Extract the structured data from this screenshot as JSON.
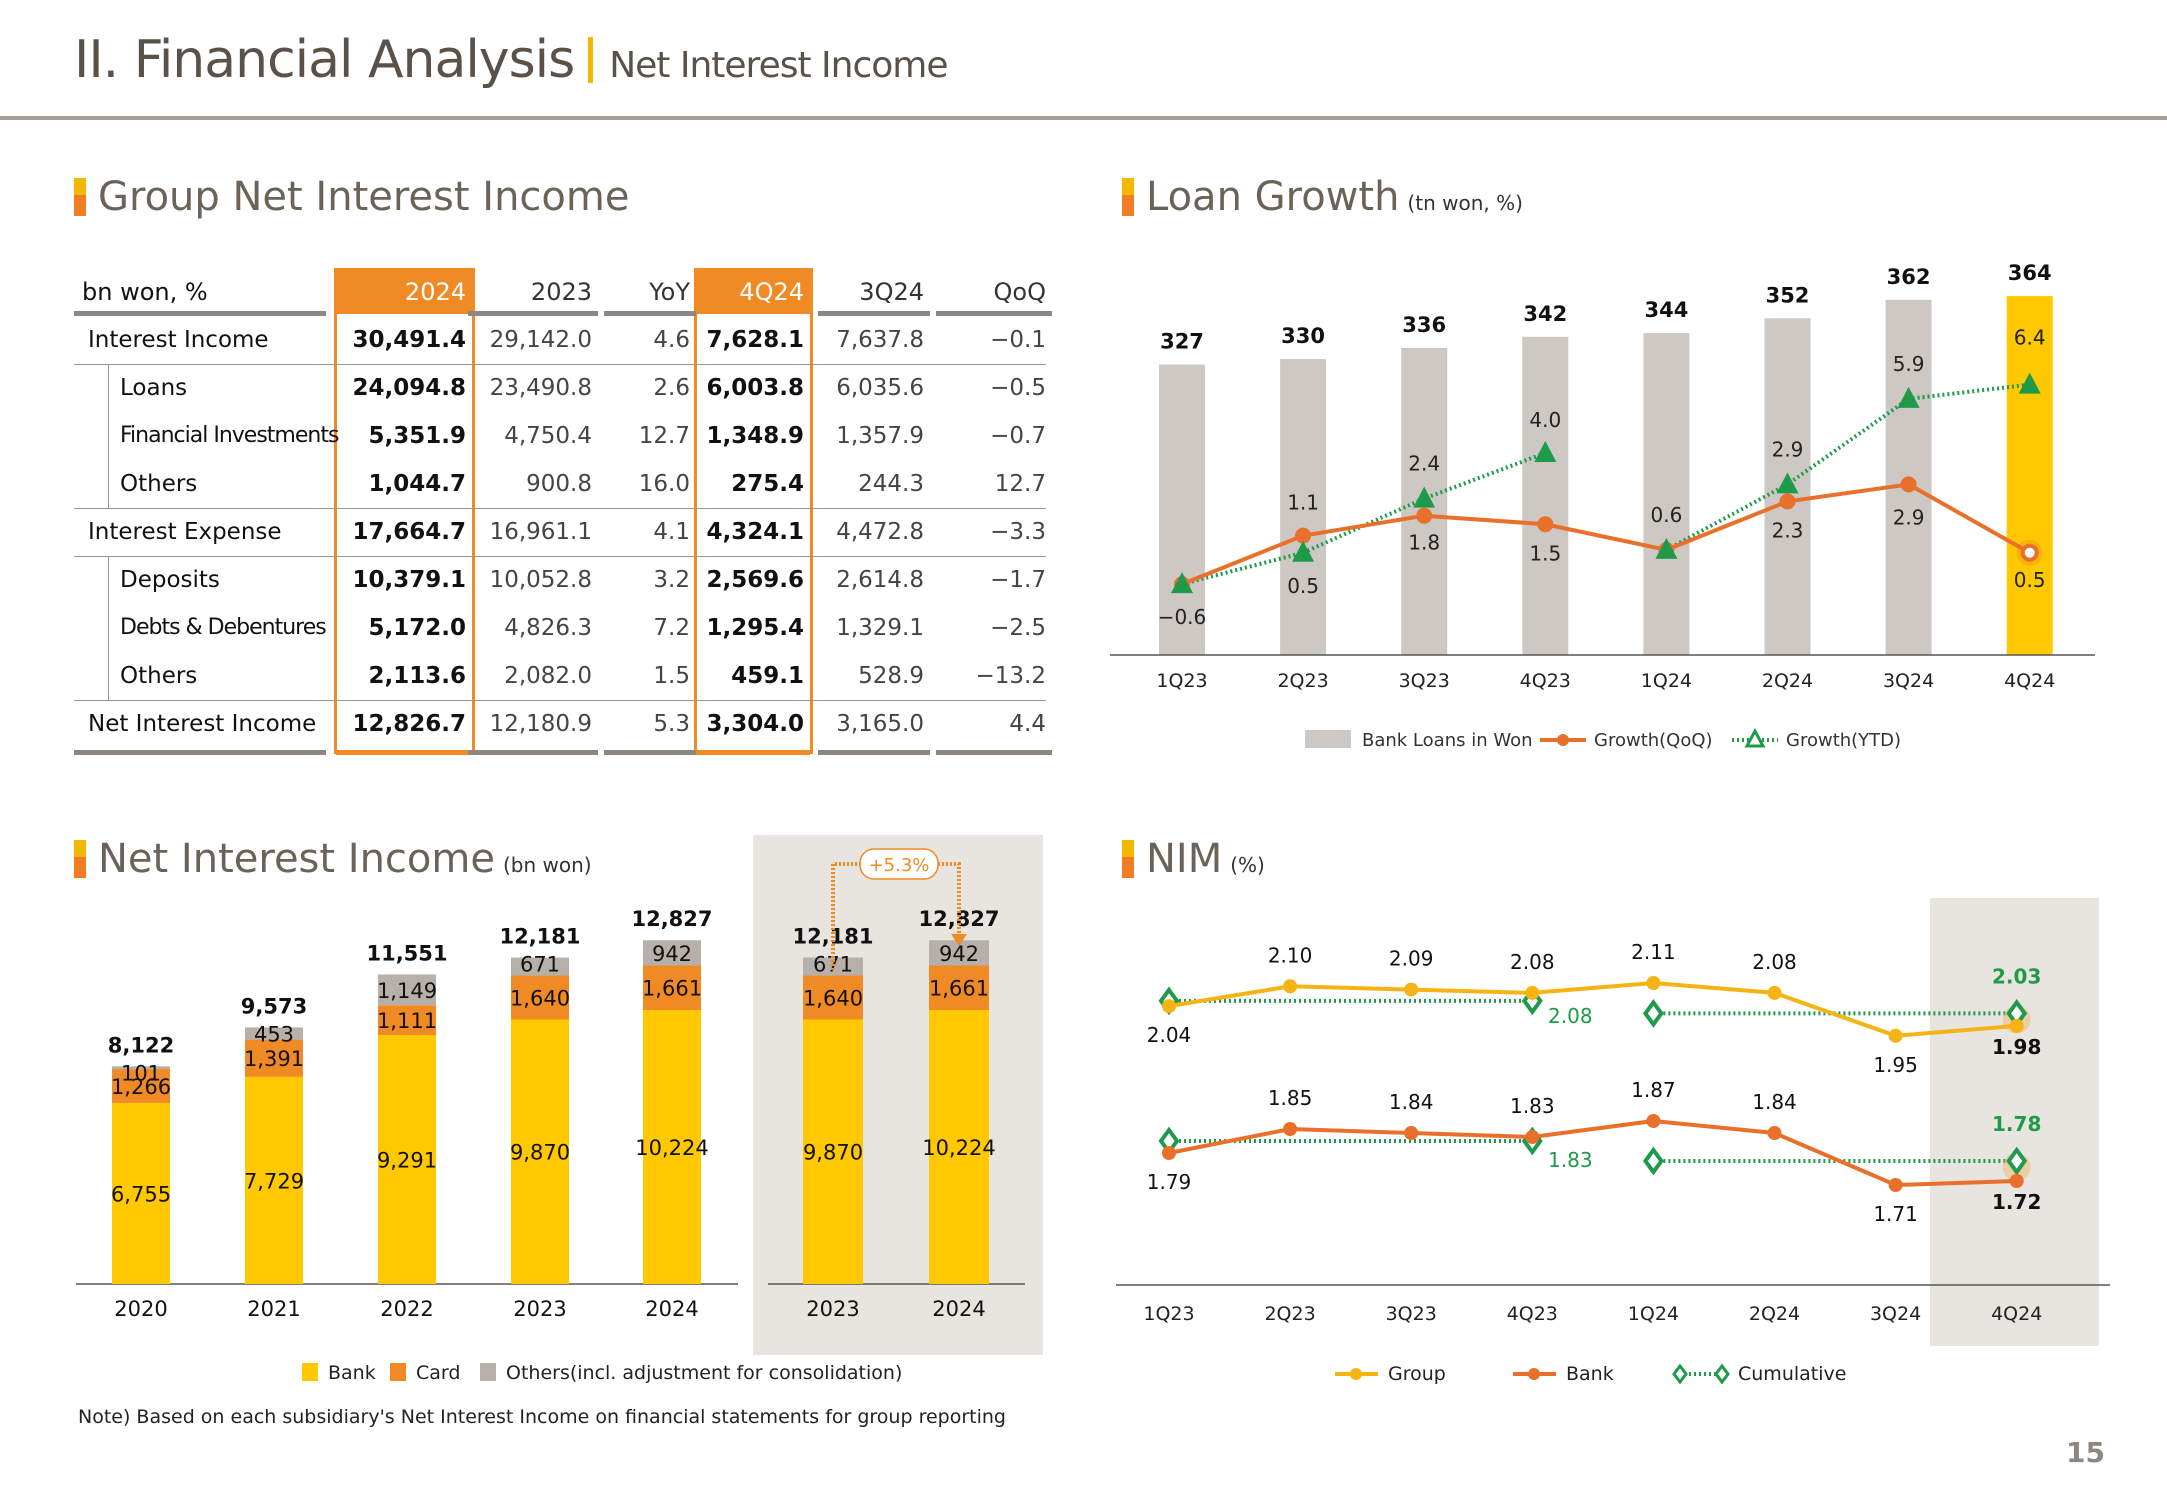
{
  "header": {
    "title": "II. Financial Analysis",
    "subtitle": "Net Interest Income"
  },
  "sections": {
    "group_nii": {
      "title": "Group Net Interest Income"
    },
    "loan_growth": {
      "title": "Loan Growth",
      "unit": "(tn won, %)"
    },
    "nii_chart": {
      "title": "Net Interest Income",
      "unit": "(bn won)"
    },
    "nim": {
      "title": "NIM",
      "unit": "(%)"
    }
  },
  "table": {
    "unit_label": "bn won, %",
    "columns": [
      "2024",
      "2023",
      "YoY",
      "4Q24",
      "3Q24",
      "QoQ"
    ],
    "highlight_columns": [
      "2024",
      "4Q24"
    ],
    "rows": [
      {
        "label": "Interest Income",
        "level": 0,
        "values": [
          "30,491.4",
          "29,142.0",
          "4.6",
          "7,628.1",
          "7,637.8",
          "-0.1"
        ]
      },
      {
        "label": "Loans",
        "level": 1,
        "values": [
          "24,094.8",
          "23,490.8",
          "2.6",
          "6,003.8",
          "6,035.6",
          "-0.5"
        ]
      },
      {
        "label": "Financial Investments",
        "level": 1,
        "values": [
          "5,351.9",
          "4,750.4",
          "12.7",
          "1,348.9",
          "1,357.9",
          "-0.7"
        ]
      },
      {
        "label": "Others",
        "level": 1,
        "values": [
          "1,044.7",
          "900.8",
          "16.0",
          "275.4",
          "244.3",
          "12.7"
        ]
      },
      {
        "label": "Interest Expense",
        "level": 0,
        "values": [
          "17,664.7",
          "16,961.1",
          "4.1",
          "4,324.1",
          "4,472.8",
          "-3.3"
        ]
      },
      {
        "label": "Deposits",
        "level": 1,
        "values": [
          "10,379.1",
          "10,052.8",
          "3.2",
          "2,569.6",
          "2,614.8",
          "-1.7"
        ]
      },
      {
        "label": "Debts & Debentures",
        "level": 1,
        "values": [
          "5,172.0",
          "4,826.3",
          "7.2",
          "1,295.4",
          "1,329.1",
          "-2.5"
        ]
      },
      {
        "label": "Others",
        "level": 1,
        "values": [
          "2,113.6",
          "2,082.0",
          "1.5",
          "459.1",
          "528.9",
          "-13.2"
        ]
      },
      {
        "label": "Net Interest Income",
        "level": 0,
        "values": [
          "12,826.7",
          "12,180.9",
          "5.3",
          "3,304.0",
          "3,165.0",
          "4.4"
        ]
      }
    ]
  },
  "colors": {
    "bank_yellow": "#ffc800",
    "card_orange": "#f08a24",
    "others_gray": "#b7b0aa",
    "loan_bar_gray": "#cdc8c4",
    "qoq_orange": "#e8702a",
    "ytd_green": "#1f9a4a",
    "group_yellow": "#f5b414",
    "shade": "#e8e4e0"
  },
  "chart_data": [
    {
      "id": "loan_growth",
      "type": "bar",
      "title": "Loan Growth (tn won, %)",
      "categories": [
        "1Q23",
        "2Q23",
        "3Q23",
        "4Q23",
        "1Q24",
        "2Q24",
        "3Q24",
        "4Q24"
      ],
      "series": [
        {
          "name": "Bank Loans in Won",
          "type": "bar",
          "values": [
            327,
            330,
            336,
            342,
            344,
            352,
            362,
            364
          ]
        },
        {
          "name": "Growth(QoQ)",
          "type": "line",
          "values": [
            -0.6,
            1.1,
            1.8,
            1.5,
            0.6,
            2.3,
            2.9,
            0.5
          ]
        },
        {
          "name": "Growth(YTD)",
          "type": "line",
          "style": "dotted",
          "values": [
            -0.6,
            0.5,
            2.4,
            4.0,
            0.6,
            2.9,
            5.9,
            6.4
          ]
        }
      ],
      "highlight_category": "4Q24",
      "legend": [
        "Bank Loans in Won",
        "Growth(QoQ)",
        "Growth(YTD)"
      ],
      "legend_position": "bottom",
      "grid": false
    },
    {
      "id": "nii_stacked",
      "type": "bar",
      "stacked": true,
      "title": "Net Interest Income (bn won)",
      "categories": [
        "2020",
        "2021",
        "2022",
        "2023",
        "2024"
      ],
      "series": [
        {
          "name": "Bank",
          "values": [
            6755,
            7729,
            9291,
            9870,
            10224
          ]
        },
        {
          "name": "Card",
          "values": [
            1266,
            1391,
            1111,
            1640,
            1661
          ]
        },
        {
          "name": "Others(incl. adjustment for consolidation)",
          "values": [
            101,
            453,
            1149,
            671,
            942
          ]
        }
      ],
      "totals": [
        8122,
        9573,
        11551,
        12181,
        12827
      ],
      "legend": [
        "Bank",
        "Card",
        "Others(incl. adjustment for consolidation)"
      ],
      "legend_position": "bottom"
    },
    {
      "id": "nii_compare",
      "type": "bar",
      "stacked": true,
      "categories": [
        "2023",
        "2024"
      ],
      "series": [
        {
          "name": "Bank",
          "values": [
            9870,
            10224
          ]
        },
        {
          "name": "Card",
          "values": [
            1640,
            1661
          ]
        },
        {
          "name": "Others(incl. adjustment for consolidation)",
          "values": [
            671,
            942
          ]
        }
      ],
      "totals": [
        12181,
        12827
      ],
      "annotation": "+5.3%"
    },
    {
      "id": "nim",
      "type": "line",
      "title": "NIM (%)",
      "categories": [
        "1Q23",
        "2Q23",
        "3Q23",
        "4Q23",
        "1Q24",
        "2Q24",
        "3Q24",
        "4Q24"
      ],
      "series": [
        {
          "name": "Group",
          "values": [
            2.04,
            2.1,
            2.09,
            2.08,
            2.11,
            2.08,
            1.95,
            1.98
          ]
        },
        {
          "name": "Bank",
          "values": [
            1.79,
            1.85,
            1.84,
            1.83,
            1.87,
            1.84,
            1.71,
            1.72
          ]
        },
        {
          "name": "Cumulative (Group)",
          "style": "dotted",
          "points": {
            "1Q23": 2.08,
            "4Q23": 2.08,
            "1Q24": 2.03,
            "4Q24": 2.03
          },
          "labels": {
            "4Q23": "2.08",
            "4Q24": "2.03"
          }
        },
        {
          "name": "Cumulative (Bank)",
          "style": "dotted",
          "points": {
            "1Q23": 1.83,
            "4Q23": 1.83,
            "1Q24": 1.78,
            "4Q24": 1.78
          },
          "labels": {
            "4Q23": "1.83",
            "4Q24": "1.78"
          }
        }
      ],
      "value_labels": {
        "group": [
          "2.04",
          "2.10",
          "2.09",
          "2.08",
          "2.11",
          "2.08",
          "1.95",
          "1.98"
        ],
        "bank": [
          "1.79",
          "1.85",
          "1.84",
          "1.83",
          "1.87",
          "1.84",
          "1.71",
          "1.72"
        ]
      },
      "highlight_category": "4Q24",
      "legend": [
        "Group",
        "Bank",
        "Cumulative"
      ],
      "legend_position": "bottom"
    }
  ],
  "note": "Note) Based on each subsidiary's Net Interest Income on financial statements for group reporting",
  "page_number": "15"
}
